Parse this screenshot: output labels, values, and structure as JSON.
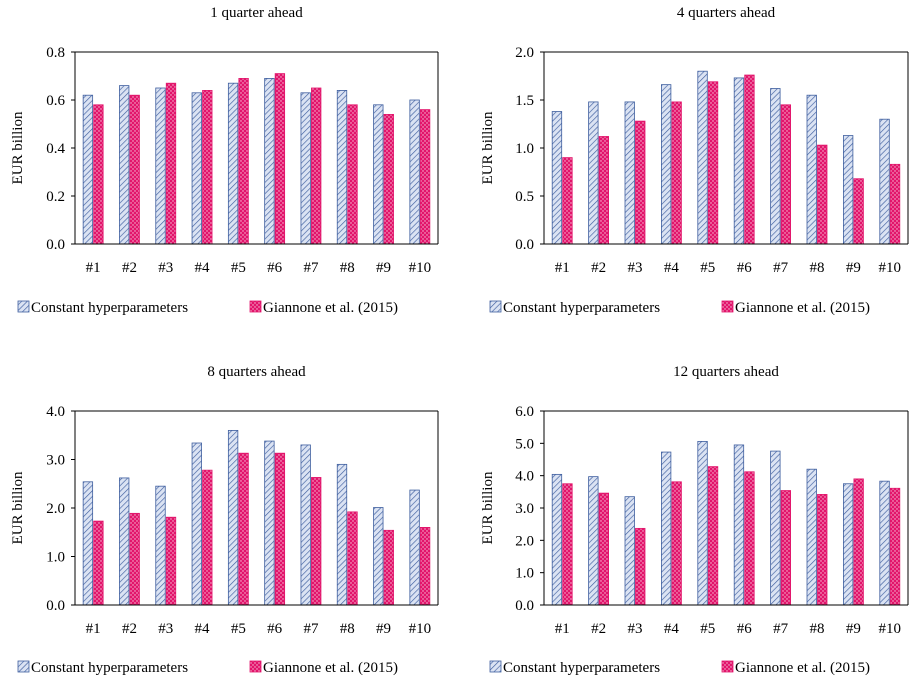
{
  "colors": {
    "series_a_stroke": "#3f5f9f",
    "series_a_fill": "#dbe3f3",
    "series_b_fill": "#e2146b",
    "axis": "#000000"
  },
  "chart_data": [
    {
      "type": "bar",
      "title": "1 quarter ahead",
      "ylabel": "EUR billion",
      "xlabel": "",
      "ylim": [
        0,
        0.8
      ],
      "yticks": [
        "0.0",
        "0.2",
        "0.4",
        "0.6",
        "0.8"
      ],
      "categories": [
        "#1",
        "#2",
        "#3",
        "#4",
        "#5",
        "#6",
        "#7",
        "#8",
        "#9",
        "#10"
      ],
      "series": [
        {
          "name": "Constant hyperparameters",
          "values": [
            0.62,
            0.66,
            0.65,
            0.63,
            0.67,
            0.69,
            0.63,
            0.64,
            0.58,
            0.6
          ]
        },
        {
          "name": "Giannone et al. (2015)",
          "values": [
            0.58,
            0.62,
            0.67,
            0.64,
            0.69,
            0.71,
            0.65,
            0.58,
            0.54,
            0.56
          ]
        }
      ],
      "legend": "bottom"
    },
    {
      "type": "bar",
      "title": "4 quarters ahead",
      "ylabel": "EUR billion",
      "xlabel": "",
      "ylim": [
        0,
        2.0
      ],
      "yticks": [
        "0.0",
        "0.5",
        "1.0",
        "1.5",
        "2.0"
      ],
      "categories": [
        "#1",
        "#2",
        "#3",
        "#4",
        "#5",
        "#6",
        "#7",
        "#8",
        "#9",
        "#10"
      ],
      "series": [
        {
          "name": "Constant hyperparameters",
          "values": [
            1.38,
            1.48,
            1.48,
            1.66,
            1.8,
            1.73,
            1.62,
            1.55,
            1.13,
            1.3
          ]
        },
        {
          "name": "Giannone et al. (2015)",
          "values": [
            0.9,
            1.12,
            1.28,
            1.48,
            1.69,
            1.76,
            1.45,
            1.03,
            0.68,
            0.83
          ]
        }
      ],
      "legend": "bottom"
    },
    {
      "type": "bar",
      "title": "8 quarters ahead",
      "ylabel": "EUR billion",
      "xlabel": "",
      "ylim": [
        0,
        4.0
      ],
      "yticks": [
        "0.0",
        "1.0",
        "2.0",
        "3.0",
        "4.0"
      ],
      "categories": [
        "#1",
        "#2",
        "#3",
        "#4",
        "#5",
        "#6",
        "#7",
        "#8",
        "#9",
        "#10"
      ],
      "series": [
        {
          "name": "Constant hyperparameters",
          "values": [
            2.54,
            2.62,
            2.45,
            3.34,
            3.6,
            3.38,
            3.3,
            2.9,
            2.01,
            2.37
          ]
        },
        {
          "name": "Giannone et al. (2015)",
          "values": [
            1.73,
            1.89,
            1.81,
            2.78,
            3.13,
            3.13,
            2.63,
            1.92,
            1.54,
            1.6
          ]
        }
      ],
      "legend": "bottom"
    },
    {
      "type": "bar",
      "title": "12 quarters ahead",
      "ylabel": "EUR billion",
      "xlabel": "",
      "ylim": [
        0,
        6.0
      ],
      "yticks": [
        "0.0",
        "1.0",
        "2.0",
        "3.0",
        "4.0",
        "5.0",
        "6.0"
      ],
      "categories": [
        "#1",
        "#2",
        "#3",
        "#4",
        "#5",
        "#6",
        "#7",
        "#8",
        "#9",
        "#10"
      ],
      "series": [
        {
          "name": "Constant hyperparameters",
          "values": [
            4.04,
            3.97,
            3.35,
            4.73,
            5.06,
            4.95,
            4.76,
            4.2,
            3.75,
            3.83
          ]
        },
        {
          "name": "Giannone et al. (2015)",
          "values": [
            3.75,
            3.46,
            2.37,
            3.81,
            4.28,
            4.12,
            3.54,
            3.42,
            3.9,
            3.61
          ]
        }
      ],
      "legend": "bottom"
    }
  ]
}
